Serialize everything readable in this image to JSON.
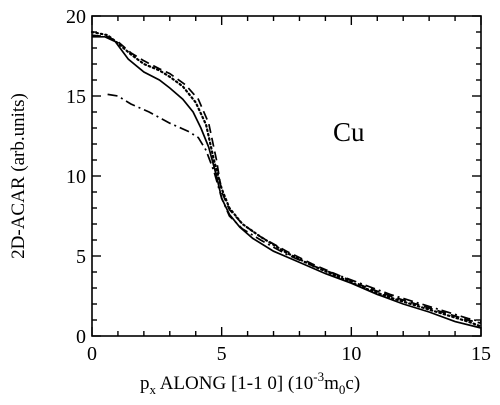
{
  "chart_data": {
    "type": "line",
    "xlabel": {
      "base": "p",
      "sub": "x",
      "text": " ALONG [1-1 0] (10",
      "exp": "-3",
      "tail_base": "m",
      "tail_sub": "0",
      "tail_end": "c)"
    },
    "ylabel": "2D-ACAR (arb.units)",
    "annotation": "Cu",
    "xlim": [
      0,
      15
    ],
    "ylim": [
      0,
      20
    ],
    "x_ticks": [
      0,
      5,
      10,
      15
    ],
    "y_ticks": [
      0,
      5,
      10,
      15,
      20
    ],
    "x_tick_labels": [
      "0",
      "5",
      "10",
      "15"
    ],
    "y_tick_labels": [
      "0",
      "5",
      "10",
      "15",
      "20"
    ],
    "grid": false,
    "series": [
      {
        "style": "solid",
        "color": "#000000",
        "points": [
          [
            0,
            18.7
          ],
          [
            0.5,
            18.7
          ],
          [
            0.9,
            18.4
          ],
          [
            1.4,
            17.3
          ],
          [
            2.0,
            16.5
          ],
          [
            2.6,
            16.0
          ],
          [
            3.0,
            15.5
          ],
          [
            3.5,
            14.8
          ],
          [
            3.9,
            14.0
          ],
          [
            4.2,
            13.0
          ],
          [
            4.5,
            11.8
          ],
          [
            4.8,
            10.0
          ],
          [
            5.0,
            8.6
          ],
          [
            5.3,
            7.6
          ],
          [
            5.7,
            6.8
          ],
          [
            6.2,
            6.1
          ],
          [
            7.0,
            5.3
          ],
          [
            8.0,
            4.6
          ],
          [
            9.0,
            3.9
          ],
          [
            10.0,
            3.3
          ],
          [
            11.0,
            2.6
          ],
          [
            12.0,
            2.0
          ],
          [
            13.0,
            1.5
          ],
          [
            14.0,
            0.9
          ],
          [
            15.0,
            0.5
          ]
        ]
      },
      {
        "style": "dotted",
        "color": "#000000",
        "points": [
          [
            0,
            19.0
          ],
          [
            0.6,
            18.8
          ],
          [
            1.0,
            18.3
          ],
          [
            1.5,
            17.6
          ],
          [
            2.0,
            17.0
          ],
          [
            2.6,
            16.6
          ],
          [
            3.0,
            16.2
          ],
          [
            3.5,
            15.6
          ],
          [
            4.0,
            14.6
          ],
          [
            4.4,
            13.2
          ],
          [
            4.7,
            11.0
          ],
          [
            5.0,
            9.2
          ],
          [
            5.3,
            8.0
          ],
          [
            5.8,
            7.0
          ],
          [
            6.5,
            6.2
          ],
          [
            7.5,
            5.2
          ],
          [
            8.5,
            4.4
          ],
          [
            9.5,
            3.7
          ],
          [
            10.5,
            3.0
          ],
          [
            11.5,
            2.4
          ],
          [
            12.5,
            1.9
          ],
          [
            13.5,
            1.4
          ],
          [
            14.5,
            0.9
          ],
          [
            15.0,
            0.6
          ]
        ]
      },
      {
        "style": "dashed",
        "color": "#000000",
        "points": [
          [
            0,
            18.8
          ],
          [
            0.6,
            18.7
          ],
          [
            1.0,
            18.4
          ],
          [
            1.5,
            17.7
          ],
          [
            2.0,
            17.2
          ],
          [
            2.6,
            16.7
          ],
          [
            3.0,
            16.4
          ],
          [
            3.6,
            15.7
          ],
          [
            4.1,
            14.8
          ],
          [
            4.5,
            13.3
          ],
          [
            4.8,
            11.0
          ],
          [
            5.0,
            9.0
          ],
          [
            5.3,
            7.9
          ],
          [
            5.8,
            7.0
          ],
          [
            6.5,
            6.2
          ],
          [
            7.5,
            5.3
          ],
          [
            8.5,
            4.5
          ],
          [
            9.5,
            3.8
          ],
          [
            10.5,
            3.1
          ],
          [
            11.5,
            2.5
          ],
          [
            12.5,
            2.0
          ],
          [
            13.5,
            1.5
          ],
          [
            14.5,
            1.0
          ],
          [
            15.0,
            0.8
          ]
        ]
      },
      {
        "style": "dashdot",
        "color": "#000000",
        "points": [
          [
            0.6,
            15.1
          ],
          [
            1.0,
            15.0
          ],
          [
            1.5,
            14.5
          ],
          [
            2.2,
            14.0
          ],
          [
            3.0,
            13.3
          ],
          [
            3.7,
            12.8
          ],
          [
            4.1,
            12.4
          ],
          [
            4.4,
            11.6
          ],
          [
            4.7,
            10.3
          ],
          [
            5.0,
            8.6
          ],
          [
            5.3,
            7.5
          ],
          [
            5.8,
            6.7
          ],
          [
            6.5,
            6.0
          ],
          [
            7.5,
            5.1
          ],
          [
            8.5,
            4.4
          ],
          [
            9.5,
            3.8
          ],
          [
            10.5,
            3.2
          ],
          [
            11.5,
            2.6
          ],
          [
            12.5,
            2.1
          ],
          [
            13.5,
            1.6
          ],
          [
            14.5,
            1.1
          ],
          [
            15.0,
            0.9
          ]
        ]
      }
    ]
  }
}
